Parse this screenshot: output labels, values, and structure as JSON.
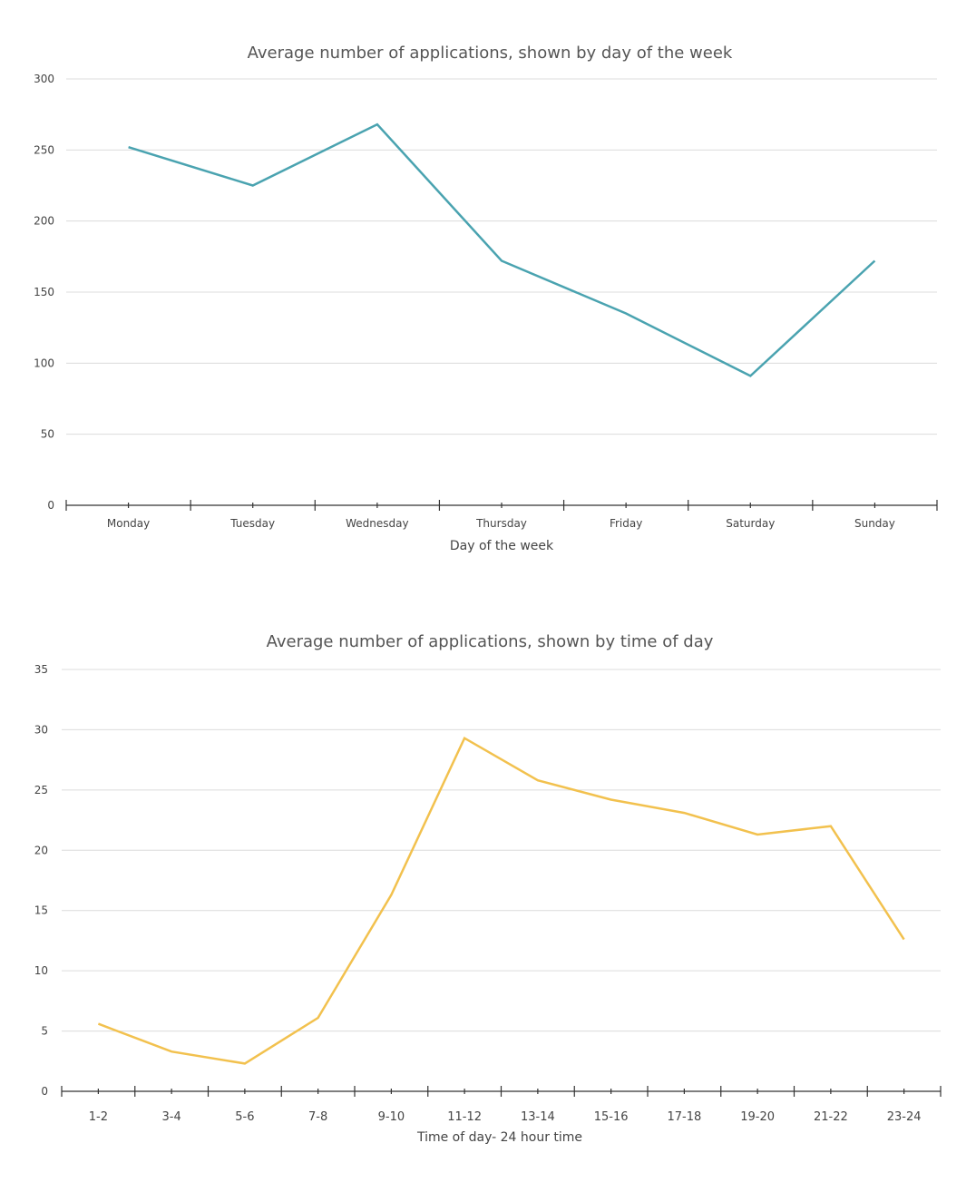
{
  "chart_data": [
    {
      "type": "line",
      "title": "Average number of applications, shown by day of the week",
      "xlabel": "Day of the week",
      "ylabel": "",
      "ylim": [
        0,
        300
      ],
      "yticks": [
        0,
        50,
        100,
        150,
        200,
        250,
        300
      ],
      "grid": true,
      "legend": "none",
      "categories": [
        "Monday",
        "Tuesday",
        "Wednesday",
        "Thursday",
        "Friday",
        "Saturday",
        "Sunday"
      ],
      "series": [
        {
          "color": "#4aa3b0",
          "values": [
            252,
            225,
            268,
            172,
            135,
            91,
            172
          ]
        }
      ]
    },
    {
      "type": "line",
      "title": "Average number of applications, shown by time of day",
      "xlabel": "Time of day- 24 hour time",
      "ylabel": "",
      "ylim": [
        0,
        35
      ],
      "yticks": [
        0,
        5,
        10,
        15,
        20,
        25,
        30,
        35
      ],
      "grid": true,
      "legend": "none",
      "categories": [
        "1-2",
        "3-4",
        "5-6",
        "7-8",
        "9-10",
        "11-12",
        "13-14",
        "15-16",
        "17-18",
        "19-20",
        "21-22",
        "23-24"
      ],
      "series": [
        {
          "color": "#f2c14e",
          "values": [
            5.6,
            3.3,
            2.3,
            6.1,
            16.3,
            29.3,
            25.8,
            24.2,
            23.1,
            21.3,
            22.0,
            12.6
          ]
        }
      ]
    }
  ]
}
